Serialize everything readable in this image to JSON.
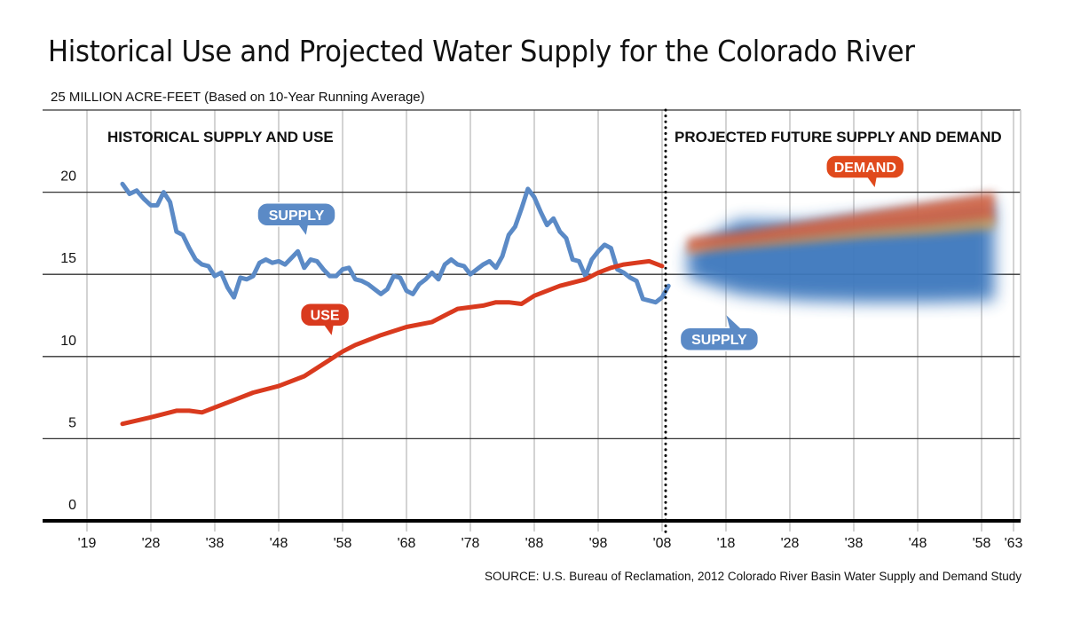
{
  "chart_data": {
    "type": "line",
    "title": "Historical Use and Projected Water Supply for the Colorado River",
    "ylabel": "MILLION ACRE-FEET (Based on 10-Year Running Average)",
    "xlabel": "",
    "ylim": [
      0,
      25
    ],
    "yticks": [
      0,
      5,
      10,
      15,
      20,
      25
    ],
    "xticks": [
      {
        "year": 1919,
        "label": "'19"
      },
      {
        "year": 1928,
        "label": "'28"
      },
      {
        "year": 1938,
        "label": "'38"
      },
      {
        "year": 1948,
        "label": "'48"
      },
      {
        "year": 1958,
        "label": "'58"
      },
      {
        "year": 1968,
        "label": "'68"
      },
      {
        "year": 1978,
        "label": "'78"
      },
      {
        "year": 1988,
        "label": "'88"
      },
      {
        "year": 1998,
        "label": "'98"
      },
      {
        "year": 2008,
        "label": "'08"
      },
      {
        "year": 2018,
        "label": "'18"
      },
      {
        "year": 2028,
        "label": "'28"
      },
      {
        "year": 2038,
        "label": "'38"
      },
      {
        "year": 2048,
        "label": "'48"
      },
      {
        "year": 2058,
        "label": "'58"
      },
      {
        "year": 2063,
        "label": "'63"
      }
    ],
    "grid": true,
    "divider_year": 2008,
    "sections": [
      {
        "label": "HISTORICAL SUPPLY AND USE",
        "position": "top-left"
      },
      {
        "label": "PROJECTED FUTURE SUPPLY AND DEMAND",
        "position": "top-right"
      }
    ],
    "series": [
      {
        "name": "SUPPLY",
        "kind": "historical",
        "color": "#5b8ac6",
        "x": [
          1924,
          1925,
          1926,
          1927,
          1928,
          1929,
          1930,
          1931,
          1932,
          1933,
          1934,
          1935,
          1936,
          1937,
          1938,
          1939,
          1940,
          1941,
          1942,
          1943,
          1944,
          1945,
          1946,
          1947,
          1948,
          1949,
          1950,
          1951,
          1952,
          1953,
          1954,
          1955,
          1956,
          1957,
          1958,
          1959,
          1960,
          1961,
          1962,
          1963,
          1964,
          1965,
          1966,
          1967,
          1968,
          1969,
          1970,
          1971,
          1972,
          1973,
          1974,
          1975,
          1976,
          1977,
          1978,
          1979,
          1980,
          1981,
          1982,
          1983,
          1984,
          1985,
          1986,
          1987,
          1988,
          1989,
          1990,
          1991,
          1992,
          1993,
          1994,
          1995,
          1996,
          1997,
          1998,
          1999,
          2000,
          2001,
          2002,
          2003,
          2004,
          2005,
          2006,
          2007,
          2008,
          2009,
          2010,
          2011
        ],
        "values": [
          20.5,
          19.9,
          20.1,
          19.6,
          19.2,
          19.2,
          20.0,
          19.4,
          17.6,
          17.4,
          16.6,
          15.9,
          15.6,
          15.5,
          14.9,
          15.1,
          14.2,
          13.6,
          14.8,
          14.7,
          14.9,
          15.7,
          15.9,
          15.7,
          15.8,
          15.6,
          16.0,
          16.4,
          15.4,
          15.9,
          15.8,
          15.3,
          14.9,
          14.9,
          15.3,
          15.4,
          14.7,
          14.6,
          14.4,
          14.1,
          13.8,
          14.1,
          14.9,
          14.8,
          14.0,
          13.8,
          14.4,
          14.7,
          15.1,
          14.7,
          15.6,
          15.9,
          15.6,
          15.5,
          15.0,
          15.3,
          15.6,
          15.8,
          15.4,
          16.1,
          17.4,
          17.9,
          19.0,
          20.2,
          19.7,
          18.8,
          18.0,
          18.4,
          17.6,
          17.2,
          15.9,
          15.8,
          14.9,
          15.9,
          16.4,
          16.8,
          16.6,
          15.3,
          15.1,
          14.8,
          14.6,
          13.5,
          13.4,
          13.3,
          13.6,
          14.3,
          null,
          null
        ]
      },
      {
        "name": "USE",
        "kind": "historical",
        "color": "#d93a1e",
        "x": [
          1924,
          1928,
          1932,
          1934,
          1936,
          1940,
          1944,
          1948,
          1952,
          1956,
          1958,
          1960,
          1964,
          1968,
          1972,
          1976,
          1980,
          1982,
          1984,
          1986,
          1988,
          1992,
          1996,
          1998,
          2000,
          2002,
          2004,
          2006,
          2008
        ],
        "values": [
          5.9,
          6.3,
          6.7,
          6.7,
          6.6,
          7.2,
          7.8,
          8.2,
          8.8,
          9.8,
          10.3,
          10.7,
          11.3,
          11.8,
          12.1,
          12.9,
          13.1,
          13.3,
          13.3,
          13.2,
          13.7,
          14.3,
          14.7,
          15.1,
          15.4,
          15.6,
          15.7,
          15.8,
          15.5
        ]
      },
      {
        "name": "SUPPLY",
        "kind": "projected-range",
        "color": "#3d78bd",
        "x": [
          2012,
          2020,
          2030,
          2040,
          2050,
          2060
        ],
        "low": [
          14.8,
          13.8,
          13.4,
          13.3,
          13.3,
          13.4
        ],
        "high": [
          16.5,
          18.3,
          18.2,
          18.6,
          19.0,
          19.5
        ]
      },
      {
        "name": "DEMAND",
        "kind": "projected-range",
        "color": "#d9603a",
        "x": [
          2012,
          2020,
          2030,
          2040,
          2050,
          2060
        ],
        "low": [
          16.3,
          16.7,
          17.1,
          17.5,
          17.8,
          18.2
        ],
        "high": [
          17.2,
          17.6,
          18.2,
          18.8,
          19.4,
          20.0
        ]
      }
    ],
    "callouts": [
      {
        "label": "SUPPLY",
        "series": "SUPPLY",
        "year": 1952,
        "value": 17.4,
        "color": "#5b8ac6"
      },
      {
        "label": "USE",
        "series": "USE",
        "year": 1956,
        "value": 11.3,
        "color": "#d93a1e"
      },
      {
        "label": "DEMAND",
        "series": "DEMAND",
        "year": 2041,
        "value": 20.3,
        "color": "#e0491c"
      },
      {
        "label": "SUPPLY",
        "series": "SUPPLY",
        "year": 2020,
        "value": 12.3,
        "color": "#5b8ac6"
      }
    ],
    "source": "SOURCE: U.S. Bureau of Reclamation, 2012 Colorado River Basin Water Supply and Demand Study"
  }
}
